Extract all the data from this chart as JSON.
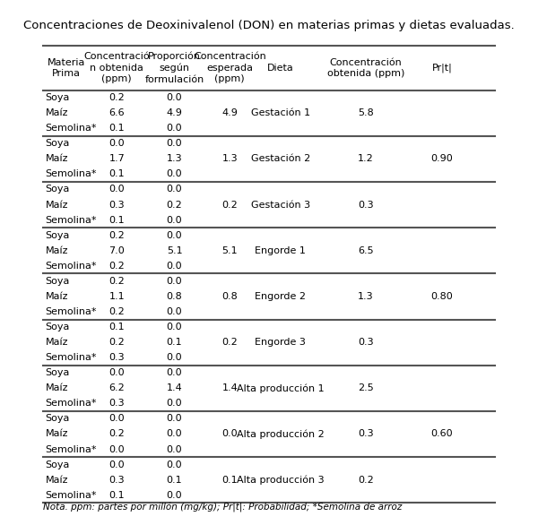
{
  "title": "Concentraciones de Deoxinivalenol (DON) en materias primas y dietas evaluadas.",
  "col_headers": [
    "Materia\nPrima",
    "Concentració\nn obtenida\n(ppm)",
    "Proporción\nsegún\nformulación",
    "Concentración\nesperada\n(ppm)",
    "Dieta",
    "Concentración\nobtenida (ppm)",
    "Pr|t|"
  ],
  "groups": [
    {
      "rows": [
        [
          "Soya",
          "0.2",
          "0.0",
          "",
          "",
          "",
          ""
        ],
        [
          "Maíz",
          "6.6",
          "4.9",
          "4.9",
          "Gestación 1",
          "5.8",
          ""
        ],
        [
          "Semolina*",
          "0.1",
          "0.0",
          "",
          "",
          "",
          ""
        ]
      ],
      "thick_bottom": true
    },
    {
      "rows": [
        [
          "Soya",
          "0.0",
          "0.0",
          "",
          "",
          "",
          ""
        ],
        [
          "Maíz",
          "1.7",
          "1.3",
          "1.3",
          "Gestación 2",
          "1.2",
          "0.90"
        ],
        [
          "Semolina*",
          "0.1",
          "0.0",
          "",
          "",
          "",
          ""
        ]
      ],
      "thick_bottom": true
    },
    {
      "rows": [
        [
          "Soya",
          "0.0",
          "0.0",
          "",
          "",
          "",
          ""
        ],
        [
          "Maíz",
          "0.3",
          "0.2",
          "0.2",
          "Gestación 3",
          "0.3",
          ""
        ],
        [
          "Semolina*",
          "0.1",
          "0.0",
          "",
          "",
          "",
          ""
        ]
      ],
      "thick_bottom": true
    },
    {
      "rows": [
        [
          "Soya",
          "0.2",
          "0.0",
          "",
          "",
          "",
          ""
        ],
        [
          "Maíz",
          "7.0",
          "5.1",
          "5.1",
          "Engorde 1",
          "6.5",
          ""
        ],
        [
          "Semolina*",
          "0.2",
          "0.0",
          "",
          "",
          "",
          ""
        ]
      ],
      "thick_bottom": true
    },
    {
      "rows": [
        [
          "Soya",
          "0.2",
          "0.0",
          "",
          "",
          "",
          ""
        ],
        [
          "Maíz",
          "1.1",
          "0.8",
          "0.8",
          "Engorde 2",
          "1.3",
          "0.80"
        ],
        [
          "Semolina*",
          "0.2",
          "0.0",
          "",
          "",
          "",
          ""
        ]
      ],
      "thick_bottom": true
    },
    {
      "rows": [
        [
          "Soya",
          "0.1",
          "0.0",
          "",
          "",
          "",
          ""
        ],
        [
          "Maíz",
          "0.2",
          "0.1",
          "0.2",
          "Engorde 3",
          "0.3",
          ""
        ],
        [
          "Semolina*",
          "0.3",
          "0.0",
          "",
          "",
          "",
          ""
        ]
      ],
      "thick_bottom": true
    },
    {
      "rows": [
        [
          "Soya",
          "0.0",
          "0.0",
          "",
          "",
          "",
          ""
        ],
        [
          "Maíz",
          "6.2",
          "1.4",
          "1.4",
          "Alta producción 1",
          "2.5",
          ""
        ],
        [
          "Semolina*",
          "0.3",
          "0.0",
          "",
          "",
          "",
          ""
        ]
      ],
      "thick_bottom": true
    },
    {
      "rows": [
        [
          "Soya",
          "0.0",
          "0.0",
          "",
          "",
          "",
          ""
        ],
        [
          "Maíz",
          "0.2",
          "0.0",
          "0.0",
          "Alta producción 2",
          "0.3",
          "0.60"
        ],
        [
          "Semolina*",
          "0.0",
          "0.0",
          "",
          "",
          "",
          ""
        ]
      ],
      "thick_bottom": true
    },
    {
      "rows": [
        [
          "Soya",
          "0.0",
          "0.0",
          "",
          "",
          "",
          ""
        ],
        [
          "Maíz",
          "0.3",
          "0.1",
          "0.1",
          "Alta producción 3",
          "0.2",
          ""
        ],
        [
          "Semolina*",
          "0.1",
          "0.0",
          "",
          "",
          "",
          ""
        ]
      ],
      "thick_bottom": false
    }
  ],
  "note": "Nota. ppm: partes por millón (mg/kg); Pr|t|: Probabilidad; *Semolina de arroz",
  "bg_color": "#ffffff",
  "text_color": "#000000",
  "title_fontsize": 9.5,
  "header_fontsize": 8.0,
  "cell_fontsize": 8.0,
  "note_fontsize": 7.5
}
